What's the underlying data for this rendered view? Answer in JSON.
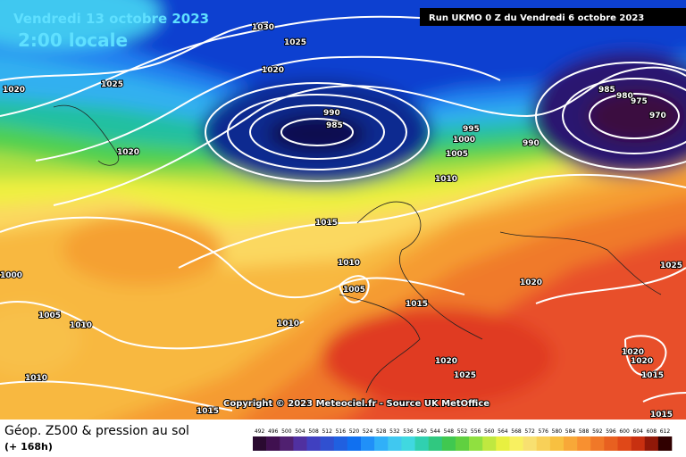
{
  "header": {
    "date": "Vendredi 13 octobre 2023",
    "time": "2:00 locale",
    "run": "Run UKMO 0 Z du Vendredi 6 octobre 2023"
  },
  "map": {
    "isobar_labels": [
      1030,
      1025,
      1020,
      1025,
      1020,
      1020,
      990,
      985,
      995,
      1000,
      1005,
      1010,
      990,
      985,
      980,
      975,
      970,
      1015,
      1010,
      1005,
      1015,
      1010,
      1020,
      1025,
      1000,
      1005,
      1010,
      1010,
      1020,
      1025,
      1020,
      1020,
      1015,
      1015,
      1015
    ],
    "copyright": "Copyright © 2023 Meteociel.fr - Source UK MetOffice"
  },
  "legend": {
    "title": "Géop. Z500 & pression au sol",
    "lead": "(+ 168h)",
    "scale": [
      492,
      496,
      500,
      504,
      508,
      512,
      516,
      520,
      524,
      528,
      532,
      536,
      540,
      544,
      548,
      552,
      556,
      560,
      564,
      568,
      572,
      576,
      580,
      584,
      588,
      592,
      596,
      600,
      604,
      608,
      612
    ]
  }
}
